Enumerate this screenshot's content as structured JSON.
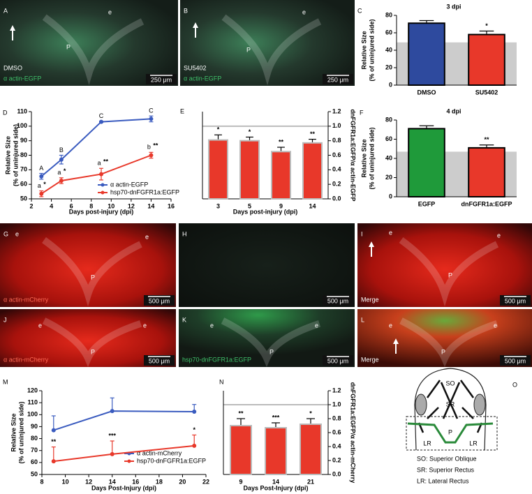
{
  "panels": [
    {
      "letter": "A",
      "marks": [
        "e",
        "P"
      ],
      "caption": [
        "DMSO",
        "α actin-EGFP"
      ],
      "scale": "250 μm"
    },
    {
      "letter": "B",
      "marks": [
        "e",
        "P"
      ],
      "caption": [
        "SU5402",
        "α actin-EGFP"
      ],
      "scale": "250 μm"
    },
    {
      "letter": "G",
      "marks": [
        "e",
        "e",
        "P"
      ],
      "caption": [
        "α actin-mCherry"
      ],
      "scale": "500 μm"
    },
    {
      "letter": "H",
      "marks": [],
      "caption": [],
      "scale": "500 μm"
    },
    {
      "letter": "I",
      "marks": [
        "e",
        "e",
        "P"
      ],
      "caption": [
        "Merge"
      ],
      "scale": "500 μm"
    },
    {
      "letter": "J",
      "marks": [
        "e",
        "e",
        "P"
      ],
      "caption": [
        "α actin-mCherry"
      ],
      "scale": "500 μm"
    },
    {
      "letter": "K",
      "marks": [
        "e",
        "e",
        "P"
      ],
      "caption": [
        "hsp70-dnFGFR1a:EGFP"
      ],
      "scale": "500 μm"
    },
    {
      "letter": "L",
      "marks": [
        "e",
        "e",
        "P"
      ],
      "caption": [
        "Merge"
      ],
      "scale": "500 μm"
    }
  ],
  "chart_data": [
    {
      "type": "bar",
      "panel": "C",
      "title": "3 dpi",
      "ylabel": [
        "Relative Size",
        "(% of uninjured side)"
      ],
      "categories": [
        "DMSO",
        "SU5402"
      ],
      "values": [
        71,
        58
      ],
      "errors": [
        3,
        4
      ],
      "colors": [
        "#2e4a9e",
        "#e8382a"
      ],
      "edgecolor": "#000000",
      "annotations": [
        null,
        "*"
      ],
      "reference": 49,
      "reference_style": "band",
      "reference_color": "#cccccc",
      "ylim": [
        0,
        80
      ],
      "yticks": [
        0,
        20,
        40,
        60,
        80
      ],
      "axis_side": "left"
    },
    {
      "type": "line",
      "panel": "D",
      "ylabel": [
        "Relative Size",
        "(% of uninjured side)"
      ],
      "xlabel": "Days post-injury (dpi)",
      "x": [
        3,
        5,
        9,
        14
      ],
      "xlim": [
        2,
        16
      ],
      "xticks": [
        2,
        4,
        6,
        8,
        10,
        12,
        14,
        16
      ],
      "ylim": [
        50,
        110
      ],
      "yticks": [
        50,
        60,
        70,
        80,
        90,
        100,
        110
      ],
      "error_bars": "both",
      "series": [
        {
          "name": "α actin-EGFP",
          "color": "#3a5bbf",
          "values": [
            65.5,
            77,
            103,
            105
          ],
          "errors": [
            2,
            3,
            0.5,
            2
          ],
          "letters": [
            "A",
            "B",
            "C",
            "C"
          ]
        },
        {
          "name": "hsp70-dnFGFR1a:EGFP",
          "color": "#e8382a",
          "values": [
            53.5,
            62.5,
            67,
            80
          ],
          "errors": [
            2,
            2,
            4,
            2
          ],
          "letters": [
            "a",
            "a",
            "a",
            "b"
          ],
          "stars": [
            "*",
            "*",
            "**",
            "**"
          ]
        }
      ]
    },
    {
      "type": "bar",
      "panel": "E",
      "ylabel": [
        "dnFGFR1a:EGFP/α actin-EGFP"
      ],
      "xlabel": "Days post-injury (dpi)",
      "categories": [
        "3",
        "5",
        "9",
        "14"
      ],
      "values": [
        0.81,
        0.8,
        0.65,
        0.77
      ],
      "errors": [
        0.07,
        0.05,
        0.06,
        0.05
      ],
      "color": "#e8382a",
      "edgecolor": "#bbbbbb",
      "annotations": [
        "*",
        "*",
        "**",
        "**"
      ],
      "reference": 1.0,
      "reference_style": "line",
      "reference_color": "#bbbbbb",
      "ylim": [
        0,
        1.2
      ],
      "yticks": [
        {
          "value": 0,
          "label": "0.0"
        },
        0.2,
        0.4,
        0.6,
        0.8,
        {
          "value": 1,
          "label": "1.0"
        },
        1.2
      ],
      "axis_side": "right"
    },
    {
      "type": "bar",
      "panel": "F",
      "title": "4 dpi",
      "ylabel": [
        "Relative Size",
        "(% of uninjured side)"
      ],
      "categories": [
        "EGFP",
        "dnFGFR1a:EGFP"
      ],
      "values": [
        71,
        51
      ],
      "errors": [
        3,
        3
      ],
      "colors": [
        "#1f9a3a",
        "#e8382a"
      ],
      "edgecolor": "#000000",
      "annotations": [
        null,
        "**"
      ],
      "reference": 47,
      "reference_style": "band",
      "reference_color": "#cccccc",
      "ylim": [
        0,
        80
      ],
      "yticks": [
        0,
        20,
        40,
        60,
        80
      ],
      "axis_side": "left"
    },
    {
      "type": "line",
      "panel": "M",
      "ylabel": [
        "Relative Size",
        "(% of uninjured side)"
      ],
      "xlabel": "Days Post-Injury (dpi)",
      "x": [
        9,
        14,
        21
      ],
      "xlim": [
        8,
        22
      ],
      "xticks": [
        8,
        10,
        12,
        14,
        16,
        18,
        20,
        22
      ],
      "ylim": [
        50,
        120
      ],
      "yticks": [
        50,
        60,
        70,
        80,
        90,
        100,
        110,
        120
      ],
      "error_bars": "upper",
      "series": [
        {
          "name": "α actin-mCherry",
          "color": "#3a5bbf",
          "values": [
            87,
            103,
            102.5
          ],
          "errors": [
            12,
            11,
            6
          ]
        },
        {
          "name": "hsp70-dnFGFR1a:EGFP",
          "color": "#e8382a",
          "values": [
            61,
            67,
            74
          ],
          "errors": [
            12,
            11,
            9
          ],
          "stars": [
            "**",
            "***",
            "*"
          ]
        }
      ]
    },
    {
      "type": "bar",
      "panel": "N",
      "ylabel": [
        "dnFGFR1a:EGFP/α actin-mCherry"
      ],
      "xlabel": "Days Post-Injury (dpi)",
      "categories": [
        "9",
        "14",
        "21"
      ],
      "values": [
        0.7,
        0.67,
        0.72
      ],
      "errors": [
        0.1,
        0.07,
        0.08
      ],
      "color": "#e8382a",
      "edgecolor": "#bbbbbb",
      "annotations": [
        "**",
        "***",
        "*"
      ],
      "reference": 1.0,
      "reference_style": "line",
      "reference_color": "#bbbbbb",
      "ylim": [
        0,
        1.2
      ],
      "yticks": [
        {
          "value": 0,
          "label": "0.0"
        },
        0.2,
        0.4,
        0.6,
        0.8,
        {
          "value": 1,
          "label": "1.0"
        },
        1.2
      ],
      "axis_side": "right"
    }
  ],
  "diagram": {
    "letter": "O",
    "labels": {
      "so": "SO",
      "sr": "SR",
      "p": "P",
      "lr_left": "LR",
      "lr_right": "LR"
    },
    "legend": [
      "SO: Superior Oblique",
      "SR: Superior Rectus",
      "LR: Lateral Rectus"
    ]
  }
}
